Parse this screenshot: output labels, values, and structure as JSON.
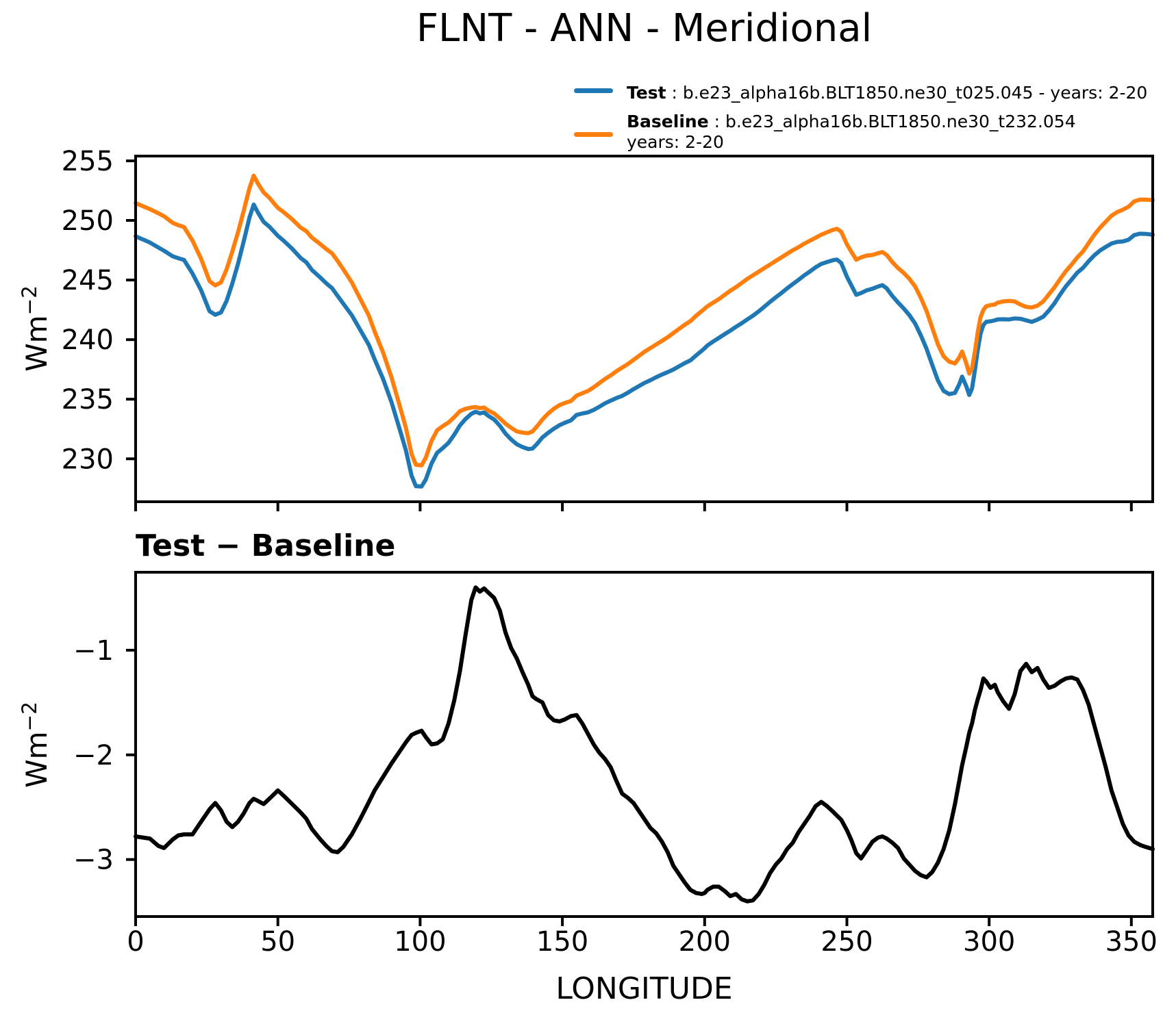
{
  "title": "FLNT - ANN - Meridional",
  "legend": {
    "items": [
      {
        "name": "Test",
        "separator": " : ",
        "description": "b.e23_alpha16b.BLT1850.ne30_t025.045 - years: 2-20",
        "color": "#1f77b4"
      },
      {
        "name": "Baseline",
        "separator": " : ",
        "description": "b.e23_alpha16b.BLT1850.ne30_t232.054",
        "description_line2": "years: 2-20",
        "color": "#ff7f0e"
      }
    ]
  },
  "top_panel": {
    "ylabel_base": "Wm",
    "ylabel_exponent": "−2"
  },
  "bottom_panel": {
    "title": "Test − Baseline",
    "ylabel_base": "Wm",
    "ylabel_exponent": "−2",
    "xlabel": "LONGITUDE"
  },
  "chart_data": [
    {
      "type": "line",
      "panel": "top",
      "xlabel": "",
      "ylabel": "Wm-2",
      "xlim": [
        0,
        357.5
      ],
      "ylim": [
        226.4,
        255.4
      ],
      "xticks": [
        0,
        50,
        100,
        150,
        200,
        250,
        300,
        350
      ],
      "show_xtick_labels": false,
      "yticks": [
        230,
        235,
        240,
        245,
        250,
        255
      ],
      "ytick_labels": [
        "230",
        "235",
        "240",
        "245",
        "250",
        "255"
      ],
      "grid": false,
      "legend_position": "above upper right",
      "x": [
        0,
        5,
        8,
        10,
        13,
        15,
        17,
        20,
        23,
        26,
        28,
        30,
        32,
        34,
        36,
        38,
        40,
        41.5,
        43,
        45,
        47,
        50,
        52,
        55,
        58,
        60,
        62,
        65,
        67,
        69,
        71,
        73,
        76,
        79,
        82,
        84,
        87,
        90,
        93,
        95,
        97,
        98.5,
        100.5,
        102,
        104,
        106,
        108,
        110,
        112,
        114,
        116,
        118,
        119.5,
        121,
        122.5,
        124,
        126,
        128,
        130,
        132,
        134,
        136,
        138,
        139.5,
        141,
        143,
        145,
        147,
        149,
        151,
        153,
        155,
        157,
        159,
        161,
        163,
        165,
        167,
        169,
        171,
        173,
        175,
        177,
        179,
        181,
        183,
        185,
        187,
        189,
        191,
        193,
        195,
        197,
        199,
        200,
        201,
        203,
        205,
        207,
        209,
        211,
        213,
        215,
        217,
        219,
        221,
        223,
        225,
        227,
        229,
        231,
        233,
        235,
        237,
        239,
        241,
        243,
        245,
        246.5,
        248,
        250,
        251.5,
        253.3,
        255,
        257,
        259,
        261,
        262.5,
        264,
        266,
        268,
        270,
        272,
        274,
        276,
        278,
        280,
        282,
        284,
        286,
        288,
        289.5,
        290.5,
        292,
        293,
        294,
        295,
        296,
        297,
        298,
        299,
        300.5,
        302,
        303,
        305,
        307,
        309,
        311,
        313,
        315,
        317,
        319,
        321,
        323,
        325,
        327,
        329,
        331,
        333,
        335,
        337,
        339,
        341,
        343,
        345,
        347,
        349,
        351,
        353,
        355,
        357.5
      ],
      "series": [
        {
          "name": "Test",
          "color": "#1f77b4",
          "line_width": 6,
          "values": [
            248.67,
            248.15,
            247.73,
            247.46,
            246.99,
            246.83,
            246.69,
            245.54,
            244.16,
            242.38,
            242.09,
            242.27,
            243.26,
            244.71,
            246.36,
            248.24,
            250.24,
            251.33,
            250.66,
            249.88,
            249.48,
            248.71,
            248.31,
            247.63,
            246.85,
            246.49,
            245.84,
            245.19,
            244.73,
            244.33,
            243.67,
            243.02,
            242.04,
            240.79,
            239.55,
            238.36,
            236.69,
            234.72,
            232.34,
            230.72,
            228.59,
            227.71,
            227.68,
            228.27,
            229.6,
            230.51,
            230.9,
            231.35,
            232.02,
            232.8,
            233.35,
            233.78,
            233.95,
            233.81,
            233.89,
            233.6,
            233.3,
            232.78,
            232.12,
            231.62,
            231.22,
            230.99,
            230.82,
            230.86,
            231.23,
            231.8,
            232.18,
            232.53,
            232.82,
            233.04,
            233.22,
            233.68,
            233.8,
            233.9,
            234.1,
            234.37,
            234.66,
            234.88,
            235.1,
            235.28,
            235.54,
            235.84,
            236.11,
            236.38,
            236.6,
            236.85,
            237.07,
            237.27,
            237.49,
            237.76,
            238.03,
            238.26,
            238.68,
            239.07,
            239.28,
            239.51,
            239.84,
            240.14,
            240.45,
            240.75,
            241.07,
            241.37,
            241.7,
            242.01,
            242.37,
            242.76,
            243.17,
            243.55,
            243.91,
            244.3,
            244.66,
            245.01,
            245.39,
            245.72,
            246.06,
            246.35,
            246.51,
            246.66,
            246.72,
            246.43,
            245.28,
            244.59,
            243.76,
            243.91,
            244.14,
            244.27,
            244.46,
            244.57,
            244.3,
            243.66,
            243.11,
            242.61,
            242.05,
            241.34,
            240.35,
            239.23,
            237.88,
            236.57,
            235.7,
            235.43,
            235.53,
            236.25,
            236.9,
            236.08,
            235.36,
            235.9,
            237.43,
            239.13,
            240.52,
            241.23,
            241.5,
            241.54,
            241.62,
            241.7,
            241.71,
            241.69,
            241.78,
            241.75,
            241.62,
            241.49,
            241.68,
            241.92,
            242.44,
            243.06,
            243.8,
            244.48,
            245.04,
            245.62,
            246.02,
            246.58,
            247.08,
            247.48,
            247.78,
            248.06,
            248.2,
            248.24,
            248.38,
            248.77,
            248.89,
            248.87,
            248.8
          ]
        },
        {
          "name": "Baseline",
          "color": "#ff7f0e",
          "line_width": 6,
          "values": [
            251.45,
            250.95,
            250.6,
            250.35,
            249.8,
            249.6,
            249.45,
            248.3,
            246.8,
            244.9,
            244.55,
            244.8,
            245.9,
            247.4,
            249.0,
            250.8,
            252.7,
            253.75,
            253.1,
            252.35,
            251.9,
            251.05,
            250.7,
            250.1,
            249.4,
            249.1,
            248.55,
            248.0,
            247.6,
            247.25,
            246.6,
            245.9,
            244.8,
            243.4,
            242.0,
            240.7,
            238.9,
            236.8,
            234.3,
            232.6,
            230.4,
            229.5,
            229.45,
            230.1,
            231.5,
            232.4,
            232.75,
            233.05,
            233.5,
            234.0,
            234.2,
            234.3,
            234.35,
            234.25,
            234.3,
            234.05,
            233.8,
            233.4,
            232.95,
            232.6,
            232.3,
            232.2,
            232.15,
            232.3,
            232.7,
            233.3,
            233.8,
            234.2,
            234.5,
            234.7,
            234.85,
            235.3,
            235.5,
            235.7,
            236.0,
            236.35,
            236.7,
            237.0,
            237.35,
            237.65,
            237.95,
            238.3,
            238.65,
            239.0,
            239.3,
            239.6,
            239.9,
            240.2,
            240.55,
            240.9,
            241.25,
            241.55,
            242.0,
            242.4,
            242.6,
            242.8,
            243.1,
            243.4,
            243.75,
            244.1,
            244.4,
            244.75,
            245.1,
            245.4,
            245.7,
            246.0,
            246.3,
            246.6,
            246.9,
            247.2,
            247.5,
            247.75,
            248.05,
            248.3,
            248.55,
            248.8,
            249.0,
            249.2,
            249.3,
            249.05,
            248.0,
            247.4,
            246.7,
            246.9,
            247.05,
            247.1,
            247.25,
            247.35,
            247.1,
            246.5,
            246.0,
            245.6,
            245.1,
            244.45,
            243.5,
            242.4,
            241.0,
            239.6,
            238.6,
            238.15,
            238.0,
            238.5,
            239.0,
            238.0,
            237.15,
            237.6,
            239.0,
            240.6,
            241.9,
            242.5,
            242.8,
            242.9,
            242.95,
            243.1,
            243.2,
            243.25,
            243.2,
            242.95,
            242.75,
            242.7,
            242.85,
            243.2,
            243.8,
            244.4,
            245.1,
            245.75,
            246.3,
            246.9,
            247.4,
            248.1,
            248.8,
            249.4,
            249.9,
            250.4,
            250.7,
            250.9,
            251.15,
            251.6,
            251.75,
            251.75,
            251.7
          ]
        }
      ]
    },
    {
      "type": "line",
      "panel": "bottom",
      "title": "Test − Baseline",
      "xlabel": "LONGITUDE",
      "ylabel": "Wm-2",
      "xlim": [
        0,
        357.5
      ],
      "ylim": [
        -3.545,
        -0.255
      ],
      "xticks": [
        0,
        50,
        100,
        150,
        200,
        250,
        300,
        350
      ],
      "xtick_labels": [
        "0",
        "50",
        "100",
        "150",
        "200",
        "250",
        "300",
        "350"
      ],
      "show_xtick_labels": true,
      "yticks": [
        -3,
        -2,
        -1
      ],
      "ytick_labels": [
        "−3",
        "−2",
        "−1"
      ],
      "grid": false,
      "x": [
        0,
        5,
        8,
        10,
        13,
        15,
        17,
        20,
        23,
        26,
        28,
        30,
        32,
        34,
        36,
        38,
        40,
        41.5,
        43,
        45,
        47,
        50,
        52,
        55,
        58,
        60,
        62,
        65,
        67,
        69,
        71,
        73,
        76,
        79,
        82,
        84,
        87,
        90,
        93,
        95,
        97,
        98.5,
        100.5,
        102,
        104,
        106,
        108,
        110,
        112,
        114,
        116,
        118,
        119.5,
        121,
        122.5,
        124,
        126,
        128,
        130,
        132,
        134,
        136,
        138,
        139.5,
        141,
        143,
        145,
        147,
        149,
        151,
        153,
        155,
        157,
        159,
        161,
        163,
        165,
        167,
        169,
        171,
        173,
        175,
        177,
        179,
        181,
        183,
        185,
        187,
        189,
        191,
        193,
        195,
        197,
        199,
        200,
        201,
        203,
        205,
        207,
        209,
        211,
        213,
        215,
        217,
        219,
        221,
        223,
        225,
        227,
        229,
        231,
        233,
        235,
        237,
        239,
        241,
        243,
        245,
        246.5,
        248,
        250,
        251.5,
        253.3,
        255,
        257,
        259,
        261,
        262.5,
        264,
        266,
        268,
        270,
        272,
        274,
        276,
        278,
        280,
        282,
        284,
        286,
        288,
        289.5,
        290.5,
        292,
        293,
        294,
        295,
        296,
        297,
        298,
        299,
        300.5,
        302,
        303,
        305,
        307,
        309,
        311,
        313,
        315,
        317,
        319,
        321,
        323,
        325,
        327,
        329,
        331,
        333,
        335,
        337,
        339,
        341,
        343,
        345,
        347,
        349,
        351,
        353,
        355,
        357.5
      ],
      "series": [
        {
          "name": "Test − Baseline",
          "color": "#000000",
          "line_width": 6,
          "values": [
            -2.78,
            -2.8,
            -2.87,
            -2.89,
            -2.81,
            -2.77,
            -2.76,
            -2.76,
            -2.64,
            -2.52,
            -2.46,
            -2.53,
            -2.64,
            -2.69,
            -2.64,
            -2.56,
            -2.46,
            -2.42,
            -2.44,
            -2.47,
            -2.42,
            -2.34,
            -2.39,
            -2.47,
            -2.55,
            -2.61,
            -2.71,
            -2.81,
            -2.87,
            -2.92,
            -2.93,
            -2.88,
            -2.76,
            -2.61,
            -2.45,
            -2.34,
            -2.21,
            -2.08,
            -1.96,
            -1.88,
            -1.81,
            -1.79,
            -1.77,
            -1.83,
            -1.9,
            -1.89,
            -1.85,
            -1.7,
            -1.48,
            -1.2,
            -0.85,
            -0.52,
            -0.4,
            -0.44,
            -0.41,
            -0.45,
            -0.5,
            -0.62,
            -0.83,
            -0.98,
            -1.08,
            -1.21,
            -1.33,
            -1.44,
            -1.47,
            -1.5,
            -1.62,
            -1.67,
            -1.68,
            -1.66,
            -1.63,
            -1.62,
            -1.7,
            -1.8,
            -1.9,
            -1.98,
            -2.04,
            -2.12,
            -2.25,
            -2.37,
            -2.41,
            -2.46,
            -2.54,
            -2.62,
            -2.7,
            -2.75,
            -2.83,
            -2.93,
            -3.06,
            -3.14,
            -3.22,
            -3.29,
            -3.32,
            -3.33,
            -3.32,
            -3.29,
            -3.26,
            -3.26,
            -3.3,
            -3.35,
            -3.33,
            -3.38,
            -3.4,
            -3.39,
            -3.33,
            -3.24,
            -3.13,
            -3.05,
            -2.99,
            -2.9,
            -2.84,
            -2.74,
            -2.66,
            -2.58,
            -2.49,
            -2.45,
            -2.49,
            -2.54,
            -2.58,
            -2.62,
            -2.72,
            -2.81,
            -2.94,
            -2.99,
            -2.91,
            -2.83,
            -2.79,
            -2.78,
            -2.8,
            -2.84,
            -2.89,
            -2.99,
            -3.05,
            -3.11,
            -3.15,
            -3.17,
            -3.12,
            -3.03,
            -2.9,
            -2.72,
            -2.47,
            -2.25,
            -2.1,
            -1.92,
            -1.79,
            -1.7,
            -1.57,
            -1.47,
            -1.38,
            -1.27,
            -1.3,
            -1.36,
            -1.33,
            -1.4,
            -1.49,
            -1.56,
            -1.42,
            -1.2,
            -1.13,
            -1.21,
            -1.17,
            -1.28,
            -1.36,
            -1.34,
            -1.3,
            -1.27,
            -1.26,
            -1.28,
            -1.38,
            -1.52,
            -1.72,
            -1.92,
            -2.12,
            -2.34,
            -2.5,
            -2.66,
            -2.77,
            -2.83,
            -2.86,
            -2.88,
            -2.9
          ]
        }
      ]
    }
  ]
}
